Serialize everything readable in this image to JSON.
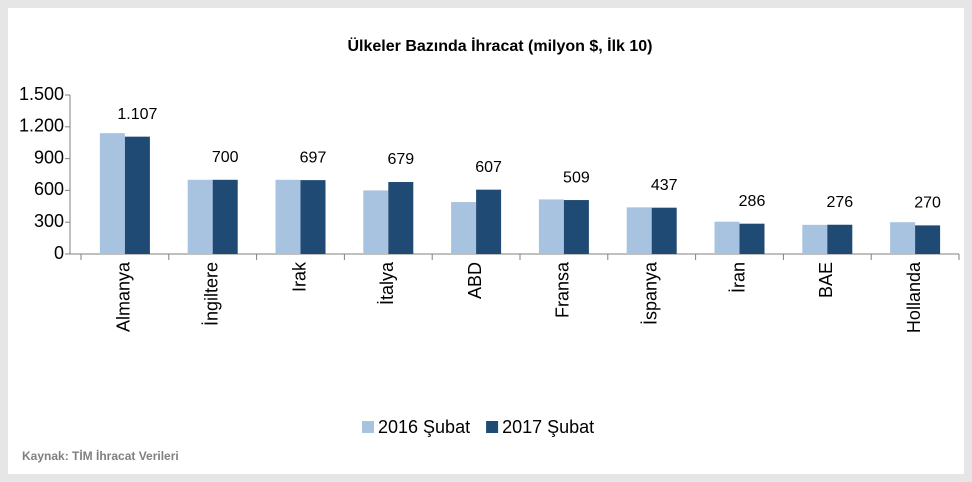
{
  "chart_data": {
    "type": "bar",
    "title": "Ülkeler Bazında İhracat (milyon $, İlk 10)",
    "categories": [
      "Almanya",
      "İngiltere",
      "Irak",
      "İtalya",
      "ABD",
      "Fransa",
      "İspanya",
      "İran",
      "BAE",
      "Hollanda"
    ],
    "series": [
      {
        "name": "2016 Şubat",
        "color": "#a8c3e0",
        "values": [
          1140,
          700,
          700,
          600,
          490,
          515,
          440,
          305,
          275,
          300
        ]
      },
      {
        "name": "2017 Şubat",
        "color": "#1f4a74",
        "values": [
          1107,
          700,
          697,
          679,
          607,
          509,
          437,
          286,
          276,
          270
        ],
        "value_labels": [
          "1.107",
          "700",
          "697",
          "679",
          "607",
          "509",
          "437",
          "286",
          "276",
          "270"
        ]
      }
    ],
    "ylim": [
      0,
      1500
    ],
    "yticks": [
      0,
      300,
      600,
      900,
      {
        "value": 1200,
        "label": "1.200"
      },
      {
        "value": 1500,
        "label": "1.500"
      }
    ],
    "source": "Kaynak: TİM İhracat Verileri"
  }
}
